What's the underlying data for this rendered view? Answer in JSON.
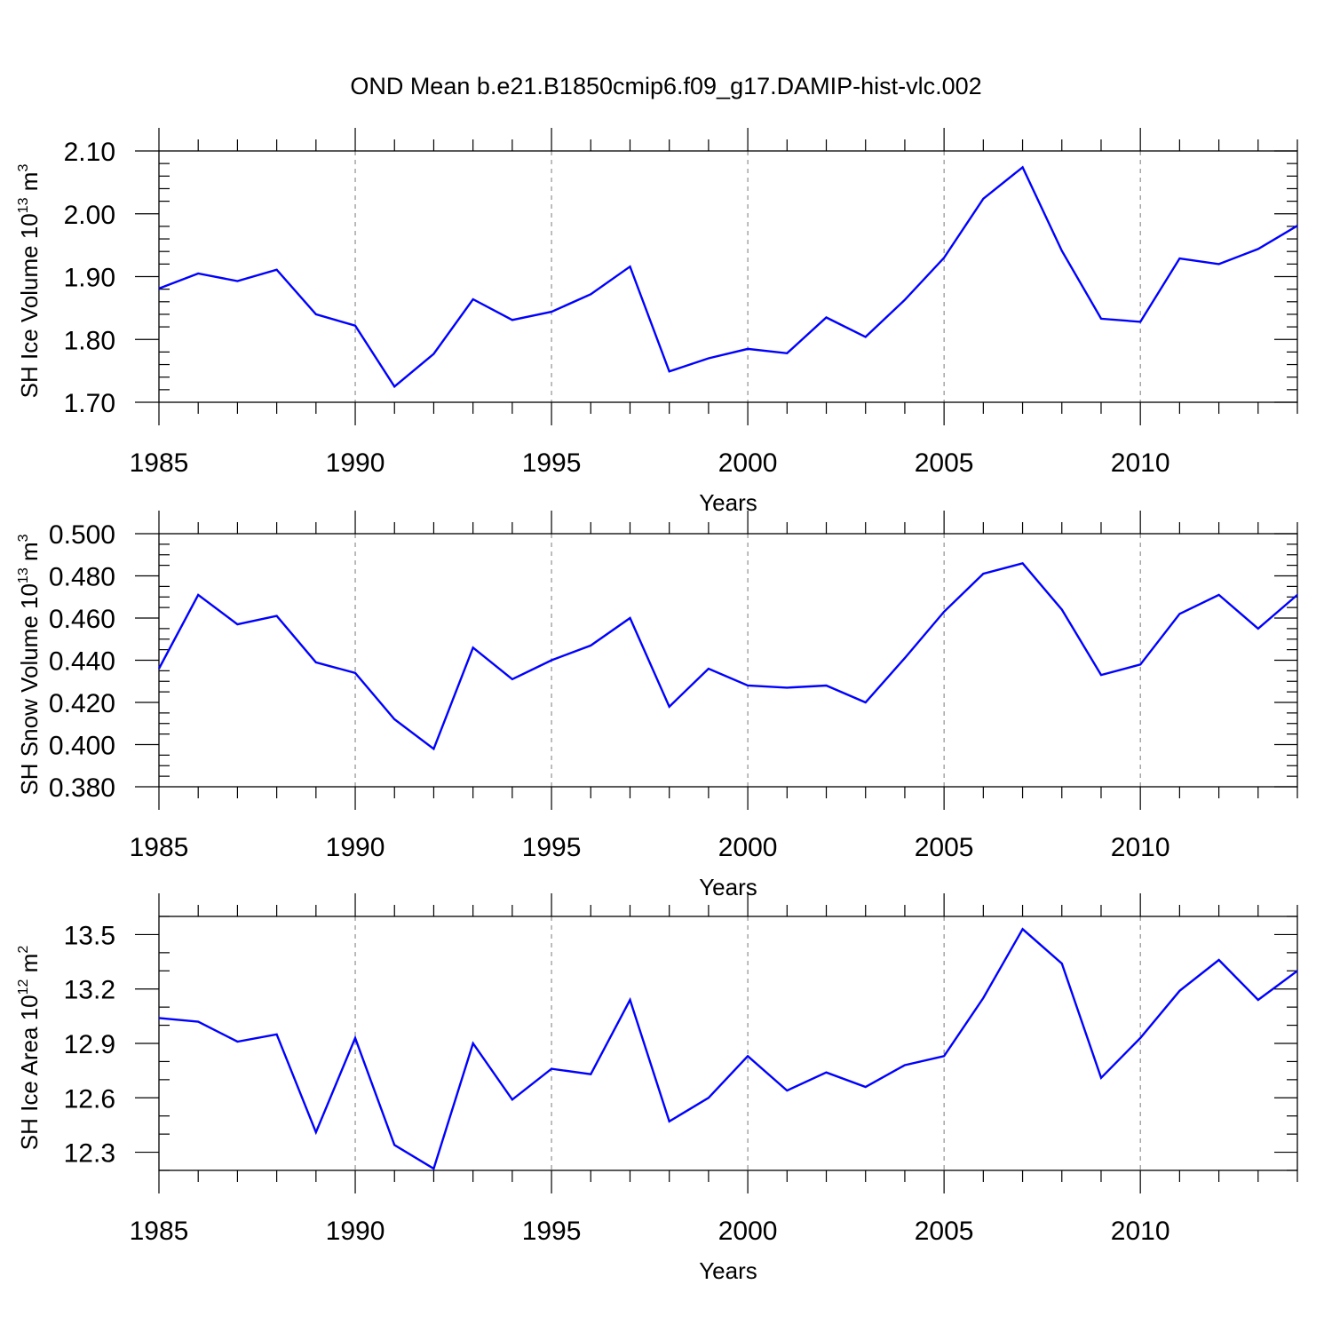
{
  "figure_title": "OND Mean b.e21.B1850cmip6.f09_g17.DAMIP-hist-vlc.002",
  "line_color": "#0000ff",
  "chart_data": [
    {
      "type": "line",
      "title": "OND Mean b.e21.B1850cmip6.f09_g17.DAMIP-hist-vlc.002",
      "ylabel": {
        "main": "SH Ice Volume 10",
        "exp": "13",
        "unit": " m",
        "unit_exp": "3"
      },
      "xlabel": "Years",
      "xlim": [
        1985,
        2014
      ],
      "ylim": [
        1.7,
        2.1
      ],
      "yticks": [
        1.7,
        1.8,
        1.9,
        2.0,
        2.1
      ],
      "ytick_labels": [
        "1.70",
        "1.80",
        "1.90",
        "2.00",
        "2.10"
      ],
      "yminor_step": 0.02,
      "xticks": [
        1985,
        1990,
        1995,
        2000,
        2005,
        2010
      ],
      "xtick_labels": [
        "1985",
        "1990",
        "1995",
        "2000",
        "2005",
        "2010"
      ],
      "x": [
        1985,
        1986,
        1987,
        1988,
        1989,
        1990,
        1991,
        1992,
        1993,
        1994,
        1995,
        1996,
        1997,
        1998,
        1999,
        2000,
        2001,
        2002,
        2003,
        2004,
        2005,
        2006,
        2007,
        2008,
        2009,
        2010,
        2011,
        2012,
        2013,
        2014
      ],
      "series": [
        {
          "name": "SH Ice Volume",
          "values": [
            1.881,
            1.905,
            1.893,
            1.911,
            1.84,
            1.822,
            1.725,
            1.777,
            1.864,
            1.831,
            1.844,
            1.872,
            1.916,
            1.749,
            1.77,
            1.785,
            1.778,
            1.835,
            1.804,
            1.863,
            1.93,
            2.024,
            2.074,
            1.941,
            1.833,
            1.828,
            1.929,
            1.92,
            1.944,
            1.981
          ]
        }
      ]
    },
    {
      "type": "line",
      "ylabel": {
        "main": "SH Snow Volume 10",
        "exp": "13",
        "unit": " m",
        "unit_exp": "3"
      },
      "xlabel": "Years",
      "xlim": [
        1985,
        2014
      ],
      "ylim": [
        0.38,
        0.5
      ],
      "yticks": [
        0.38,
        0.4,
        0.42,
        0.44,
        0.46,
        0.48,
        0.5
      ],
      "ytick_labels": [
        "0.380",
        "0.400",
        "0.420",
        "0.440",
        "0.460",
        "0.480",
        "0.500"
      ],
      "yminor_step": 0.005,
      "xticks": [
        1985,
        1990,
        1995,
        2000,
        2005,
        2010
      ],
      "xtick_labels": [
        "1985",
        "1990",
        "1995",
        "2000",
        "2005",
        "2010"
      ],
      "x": [
        1985,
        1986,
        1987,
        1988,
        1989,
        1990,
        1991,
        1992,
        1993,
        1994,
        1995,
        1996,
        1997,
        1998,
        1999,
        2000,
        2001,
        2002,
        2003,
        2004,
        2005,
        2006,
        2007,
        2008,
        2009,
        2010,
        2011,
        2012,
        2013,
        2014
      ],
      "series": [
        {
          "name": "SH Snow Volume",
          "values": [
            0.436,
            0.471,
            0.457,
            0.461,
            0.439,
            0.434,
            0.412,
            0.398,
            0.446,
            0.431,
            0.44,
            0.447,
            0.46,
            0.418,
            0.436,
            0.428,
            0.427,
            0.428,
            0.42,
            0.441,
            0.463,
            0.481,
            0.486,
            0.464,
            0.433,
            0.438,
            0.462,
            0.471,
            0.455,
            0.471
          ]
        }
      ]
    },
    {
      "type": "line",
      "ylabel": {
        "main": "SH Ice Area 10",
        "exp": "12",
        "unit": " m",
        "unit_exp": "2"
      },
      "xlabel": "Years",
      "xlim": [
        1985,
        2014
      ],
      "ylim": [
        12.2,
        13.6
      ],
      "yticks": [
        12.3,
        12.6,
        12.9,
        13.2,
        13.5
      ],
      "ytick_labels": [
        "12.3",
        "12.6",
        "12.9",
        "13.2",
        "13.5"
      ],
      "yminor_step": 0.1,
      "xticks": [
        1985,
        1990,
        1995,
        2000,
        2005,
        2010
      ],
      "xtick_labels": [
        "1985",
        "1990",
        "1995",
        "2000",
        "2005",
        "2010"
      ],
      "x": [
        1985,
        1986,
        1987,
        1988,
        1989,
        1990,
        1991,
        1992,
        1993,
        1994,
        1995,
        1996,
        1997,
        1998,
        1999,
        2000,
        2001,
        2002,
        2003,
        2004,
        2005,
        2006,
        2007,
        2008,
        2009,
        2010,
        2011,
        2012,
        2013,
        2014
      ],
      "series": [
        {
          "name": "SH Ice Area",
          "values": [
            13.04,
            13.02,
            12.91,
            12.95,
            12.41,
            12.93,
            12.34,
            12.21,
            12.9,
            12.59,
            12.76,
            12.73,
            13.14,
            12.47,
            12.6,
            12.83,
            12.64,
            12.74,
            12.66,
            12.78,
            12.83,
            13.15,
            13.53,
            13.34,
            12.71,
            12.93,
            13.19,
            13.36,
            13.14,
            13.3
          ]
        }
      ]
    }
  ]
}
